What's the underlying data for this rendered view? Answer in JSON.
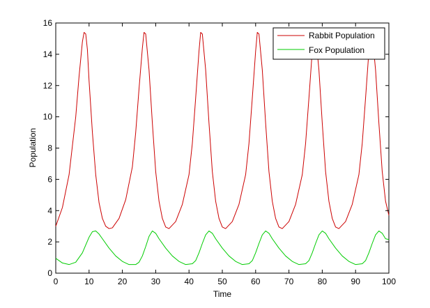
{
  "chart_data": {
    "type": "line",
    "title": "",
    "xlabel": "Time",
    "ylabel": "Population",
    "xlim": [
      0,
      100
    ],
    "ylim": [
      0,
      16
    ],
    "xticks": [
      0,
      10,
      20,
      30,
      40,
      50,
      60,
      70,
      80,
      90,
      100
    ],
    "yticks": [
      0,
      2,
      4,
      6,
      8,
      10,
      12,
      14,
      16
    ],
    "grid": false,
    "legend_position": "top-right",
    "series": [
      {
        "name": "Rabbit Population",
        "color": "#cc0000",
        "x": [
          0,
          2,
          4,
          6,
          7,
          8,
          8.5,
          9,
          9.5,
          10,
          11,
          12,
          13,
          14,
          15,
          16,
          17,
          19,
          21,
          23,
          24,
          25,
          26,
          26.5,
          27,
          28,
          29,
          30,
          31,
          32,
          33,
          34,
          36,
          38,
          40,
          41,
          42,
          43,
          43.5,
          44,
          45,
          46,
          47,
          48,
          49,
          50,
          51,
          53,
          55,
          57,
          58,
          59,
          60,
          60.5,
          61,
          62,
          63,
          64,
          65,
          66,
          67,
          68,
          70,
          72,
          74,
          75,
          76,
          77,
          77.5,
          78,
          79,
          80,
          81,
          82,
          83,
          84,
          85,
          87,
          89,
          91,
          92,
          93,
          94,
          94.5,
          95,
          96,
          97,
          98,
          99,
          100
        ],
        "y": [
          3.0,
          4.2,
          6.3,
          10.0,
          12.6,
          14.8,
          15.4,
          15.3,
          14.3,
          12.3,
          9.0,
          6.3,
          4.5,
          3.5,
          3.0,
          2.85,
          2.9,
          3.5,
          4.7,
          6.8,
          9.0,
          11.8,
          14.4,
          15.4,
          15.3,
          13.0,
          9.6,
          6.5,
          4.6,
          3.5,
          2.95,
          2.85,
          3.3,
          4.4,
          6.3,
          8.3,
          11.2,
          14.2,
          15.4,
          15.3,
          13.0,
          9.6,
          6.5,
          4.6,
          3.5,
          2.95,
          2.85,
          3.3,
          4.4,
          6.3,
          8.3,
          11.2,
          14.2,
          15.4,
          15.3,
          13.0,
          9.6,
          6.5,
          4.6,
          3.5,
          2.95,
          2.85,
          3.3,
          4.4,
          6.3,
          8.3,
          11.2,
          14.2,
          15.4,
          15.3,
          13.0,
          9.6,
          6.5,
          4.6,
          3.5,
          2.95,
          2.85,
          3.3,
          4.4,
          6.3,
          8.3,
          11.2,
          14.2,
          15.4,
          15.3,
          13.0,
          9.6,
          6.5,
          4.6,
          3.7
        ]
      },
      {
        "name": "Fox Population",
        "color": "#00cc00",
        "x": [
          0,
          2,
          4,
          6,
          8,
          9,
          10,
          11,
          12,
          13,
          14,
          16,
          18,
          20,
          22,
          24,
          25,
          26,
          27,
          28,
          29,
          30,
          31,
          33,
          35,
          37,
          39,
          41,
          42,
          43,
          44,
          45,
          46,
          47,
          48,
          50,
          52,
          54,
          56,
          58,
          59,
          60,
          61,
          62,
          63,
          64,
          65,
          67,
          69,
          71,
          73,
          75,
          76,
          77,
          78,
          79,
          80,
          81,
          82,
          84,
          86,
          88,
          90,
          92,
          93,
          94,
          95,
          96,
          97,
          98,
          99,
          100
        ],
        "y": [
          0.95,
          0.65,
          0.55,
          0.7,
          1.3,
          1.8,
          2.3,
          2.65,
          2.7,
          2.5,
          2.2,
          1.6,
          1.1,
          0.75,
          0.55,
          0.55,
          0.7,
          1.1,
          1.7,
          2.35,
          2.7,
          2.55,
          2.2,
          1.6,
          1.1,
          0.75,
          0.55,
          0.6,
          0.8,
          1.3,
          1.9,
          2.45,
          2.7,
          2.55,
          2.2,
          1.6,
          1.1,
          0.75,
          0.55,
          0.6,
          0.8,
          1.3,
          1.9,
          2.45,
          2.7,
          2.55,
          2.2,
          1.6,
          1.1,
          0.75,
          0.55,
          0.6,
          0.8,
          1.3,
          1.9,
          2.45,
          2.7,
          2.55,
          2.2,
          1.6,
          1.1,
          0.75,
          0.55,
          0.6,
          0.8,
          1.3,
          1.9,
          2.45,
          2.7,
          2.55,
          2.2,
          2.15
        ]
      }
    ]
  }
}
